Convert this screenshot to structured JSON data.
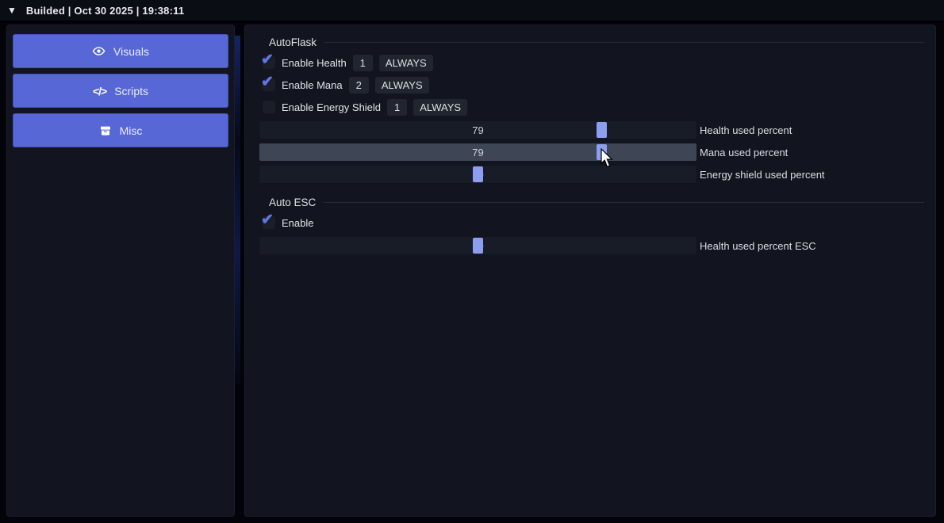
{
  "titlebar": {
    "collapse_icon": "▼",
    "title": "Builded | Oct 30 2025 | 19:38:11"
  },
  "sidebar": {
    "buttons": [
      {
        "label": "Visuals",
        "icon": "eye-icon"
      },
      {
        "label": "Scripts",
        "icon": "code-icon"
      },
      {
        "label": "Misc",
        "icon": "box-icon"
      }
    ]
  },
  "main": {
    "autoflask": {
      "title": "AutoFlask",
      "checkboxes": [
        {
          "label": "Enable Health",
          "checked": true,
          "slot": "1",
          "mode": "ALWAYS"
        },
        {
          "label": "Enable Mana",
          "checked": true,
          "slot": "2",
          "mode": "ALWAYS"
        },
        {
          "label": "Enable Energy Shield",
          "checked": false,
          "slot": "1",
          "mode": "ALWAYS"
        }
      ],
      "sliders": [
        {
          "label": "Health used percent",
          "value": 79,
          "hovered": false
        },
        {
          "label": "Mana used percent",
          "value": 79,
          "hovered": true
        },
        {
          "label": "Energy shield used percent",
          "value": 50,
          "hovered": false
        }
      ]
    },
    "autoesc": {
      "title": "Auto ESC",
      "checkboxes": [
        {
          "label": "Enable",
          "checked": true
        }
      ],
      "sliders": [
        {
          "label": "Health used percent ESC",
          "value": 50,
          "hovered": false
        }
      ]
    }
  },
  "colors": {
    "accent_button": "#5767d6",
    "check_accent": "#6276e8",
    "slider_handle": "#8d9ef0",
    "slider_track": "#181c27",
    "slider_track_hovered": "#3e4554",
    "panel_bg": "#12151f"
  }
}
